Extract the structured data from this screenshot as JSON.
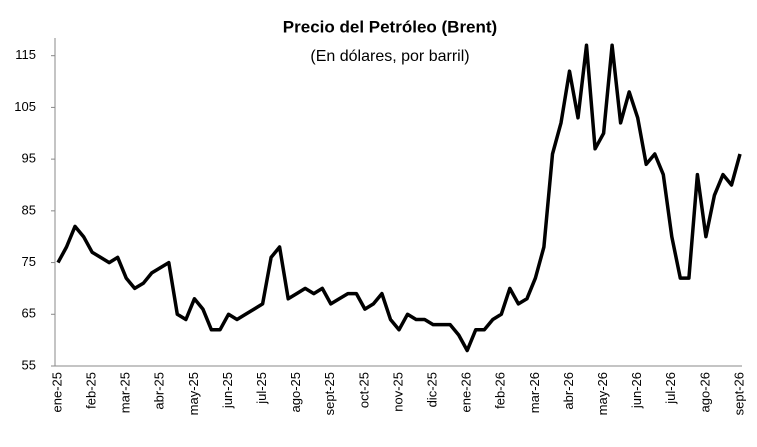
{
  "chart_data": {
    "type": "line",
    "title": "Precio del Petróleo (Brent)",
    "subtitle": "(En dólares, por barril)",
    "categories": [
      "ene-25",
      null,
      null,
      null,
      "feb-25",
      null,
      null,
      null,
      "mar-25",
      null,
      null,
      null,
      "abr-25",
      null,
      null,
      null,
      "may-25",
      null,
      null,
      null,
      "jun-25",
      null,
      null,
      null,
      "jul-25",
      null,
      null,
      null,
      "ago-25",
      null,
      null,
      null,
      "sept-25",
      null,
      null,
      null,
      "oct-25",
      null,
      null,
      null,
      "nov-25",
      null,
      null,
      null,
      "dic-25",
      null,
      null,
      null,
      "ene-26",
      null,
      null,
      null,
      "feb-26",
      null,
      null,
      null,
      "mar-26",
      null,
      null,
      null,
      "abr-26",
      null,
      null,
      null,
      "may-26",
      null,
      null,
      null,
      "jun-26",
      null,
      null,
      null,
      "jul-26",
      null,
      null,
      null,
      "ago-26",
      null,
      null,
      null,
      "sept-26"
    ],
    "series": [
      {
        "name": "Brent",
        "color": "#000000",
        "values": [
          75,
          78,
          82,
          80,
          77,
          76,
          75,
          76,
          72,
          70,
          71,
          73,
          74,
          75,
          65,
          64,
          68,
          66,
          62,
          62,
          65,
          64,
          65,
          66,
          67,
          76,
          78,
          68,
          69,
          70,
          69,
          70,
          67,
          68,
          69,
          69,
          66,
          67,
          69,
          64,
          62,
          65,
          64,
          64,
          63,
          63,
          63,
          61,
          58,
          62,
          62,
          64,
          65,
          70,
          67,
          68,
          72,
          78,
          96,
          102,
          112,
          103,
          117,
          97,
          100,
          117,
          102,
          108,
          103,
          94,
          96,
          92,
          80,
          72,
          72,
          92,
          80,
          88,
          92,
          90,
          96
        ]
      }
    ],
    "ylim": [
      55,
      119
    ],
    "yticks": [
      55,
      65,
      75,
      85,
      95,
      105,
      115
    ]
  }
}
